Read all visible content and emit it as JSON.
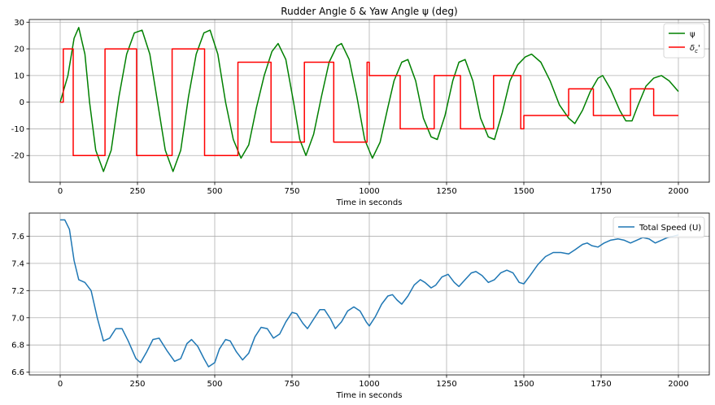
{
  "chart_data": [
    {
      "type": "line",
      "title": "Rudder Angle δ & Yaw Angle ψ (deg)",
      "xlabel": "Time in seconds",
      "ylabel": "",
      "xlim": [
        -100,
        2100
      ],
      "ylim": [
        -30,
        31
      ],
      "xticks": [
        0,
        250,
        500,
        750,
        1000,
        1250,
        1500,
        1750,
        2000
      ],
      "yticks": [
        -20,
        -10,
        0,
        10,
        20,
        30
      ],
      "grid": true,
      "legend_position": "top-right",
      "series": [
        {
          "name": "ψ",
          "color": "#008000",
          "points": [
            [
              0,
              0
            ],
            [
              25,
              10
            ],
            [
              45,
              24
            ],
            [
              60,
              28
            ],
            [
              80,
              18
            ],
            [
              95,
              0
            ],
            [
              115,
              -18
            ],
            [
              140,
              -26
            ],
            [
              165,
              -18
            ],
            [
              190,
              2
            ],
            [
              215,
              18
            ],
            [
              240,
              26
            ],
            [
              265,
              27
            ],
            [
              290,
              18
            ],
            [
              315,
              0
            ],
            [
              340,
              -18
            ],
            [
              365,
              -26
            ],
            [
              390,
              -18
            ],
            [
              415,
              2
            ],
            [
              440,
              18
            ],
            [
              465,
              26
            ],
            [
              485,
              27
            ],
            [
              510,
              18
            ],
            [
              535,
              0
            ],
            [
              560,
              -14
            ],
            [
              585,
              -21
            ],
            [
              610,
              -16
            ],
            [
              635,
              -2
            ],
            [
              660,
              10
            ],
            [
              685,
              19
            ],
            [
              705,
              22
            ],
            [
              730,
              16
            ],
            [
              755,
              0
            ],
            [
              775,
              -14
            ],
            [
              795,
              -20
            ],
            [
              820,
              -12
            ],
            [
              845,
              2
            ],
            [
              870,
              15
            ],
            [
              895,
              21
            ],
            [
              910,
              22
            ],
            [
              935,
              16
            ],
            [
              960,
              2
            ],
            [
              985,
              -14
            ],
            [
              1010,
              -21
            ],
            [
              1035,
              -15
            ],
            [
              1060,
              -2
            ],
            [
              1080,
              8
            ],
            [
              1105,
              15
            ],
            [
              1125,
              16
            ],
            [
              1150,
              8
            ],
            [
              1175,
              -6
            ],
            [
              1200,
              -13
            ],
            [
              1220,
              -14
            ],
            [
              1245,
              -5
            ],
            [
              1270,
              8
            ],
            [
              1290,
              15
            ],
            [
              1310,
              16
            ],
            [
              1335,
              8
            ],
            [
              1360,
              -6
            ],
            [
              1385,
              -13
            ],
            [
              1405,
              -14
            ],
            [
              1430,
              -4
            ],
            [
              1455,
              8
            ],
            [
              1480,
              14
            ],
            [
              1505,
              17
            ],
            [
              1525,
              18
            ],
            [
              1555,
              15
            ],
            [
              1585,
              8
            ],
            [
              1615,
              -1
            ],
            [
              1645,
              -6
            ],
            [
              1665,
              -8
            ],
            [
              1690,
              -3
            ],
            [
              1715,
              4
            ],
            [
              1740,
              9
            ],
            [
              1755,
              10
            ],
            [
              1780,
              5
            ],
            [
              1810,
              -3
            ],
            [
              1830,
              -7
            ],
            [
              1850,
              -7
            ],
            [
              1870,
              -1
            ],
            [
              1895,
              6
            ],
            [
              1920,
              9
            ],
            [
              1945,
              10
            ],
            [
              1970,
              8
            ],
            [
              2000,
              4
            ]
          ]
        },
        {
          "name": "δc'",
          "color": "#ff0000",
          "points": [
            [
              0,
              0
            ],
            [
              10,
              0
            ],
            [
              10,
              20
            ],
            [
              42,
              20
            ],
            [
              42,
              -20
            ],
            [
              145,
              -20
            ],
            [
              145,
              20
            ],
            [
              247,
              20
            ],
            [
              247,
              -20
            ],
            [
              362,
              -20
            ],
            [
              362,
              20
            ],
            [
              467,
              20
            ],
            [
              467,
              -20
            ],
            [
              575,
              -20
            ],
            [
              575,
              15
            ],
            [
              682,
              15
            ],
            [
              682,
              -15
            ],
            [
              790,
              -15
            ],
            [
              790,
              15
            ],
            [
              885,
              15
            ],
            [
              885,
              -15
            ],
            [
              993,
              -15
            ],
            [
              993,
              15
            ],
            [
              1000,
              15
            ],
            [
              1000,
              10
            ],
            [
              1100,
              10
            ],
            [
              1100,
              -10
            ],
            [
              1210,
              -10
            ],
            [
              1210,
              10
            ],
            [
              1295,
              10
            ],
            [
              1295,
              -10
            ],
            [
              1402,
              -10
            ],
            [
              1402,
              10
            ],
            [
              1490,
              10
            ],
            [
              1490,
              -10
            ],
            [
              1500,
              -10
            ],
            [
              1500,
              -5
            ],
            [
              1645,
              -5
            ],
            [
              1645,
              5
            ],
            [
              1725,
              5
            ],
            [
              1725,
              -5
            ],
            [
              1845,
              -5
            ],
            [
              1845,
              5
            ],
            [
              1920,
              5
            ],
            [
              1920,
              -5
            ],
            [
              2000,
              -5
            ]
          ]
        }
      ]
    },
    {
      "type": "line",
      "title": "",
      "xlabel": "Time in seconds",
      "ylabel": "",
      "xlim": [
        -100,
        2100
      ],
      "ylim": [
        6.58,
        7.77
      ],
      "xticks": [
        0,
        250,
        500,
        750,
        1000,
        1250,
        1500,
        1750,
        2000
      ],
      "yticks": [
        6.6,
        6.8,
        7.0,
        7.2,
        7.4,
        7.6
      ],
      "grid": true,
      "legend_position": "top-right",
      "series": [
        {
          "name": "Total Speed (U)",
          "color": "#1f77b4",
          "points": [
            [
              0,
              7.72
            ],
            [
              15,
              7.72
            ],
            [
              30,
              7.65
            ],
            [
              45,
              7.42
            ],
            [
              60,
              7.28
            ],
            [
              80,
              7.26
            ],
            [
              100,
              7.2
            ],
            [
              120,
              7.0
            ],
            [
              140,
              6.83
            ],
            [
              160,
              6.85
            ],
            [
              180,
              6.92
            ],
            [
              200,
              6.92
            ],
            [
              220,
              6.83
            ],
            [
              245,
              6.7
            ],
            [
              260,
              6.67
            ],
            [
              280,
              6.75
            ],
            [
              300,
              6.84
            ],
            [
              320,
              6.85
            ],
            [
              345,
              6.76
            ],
            [
              370,
              6.68
            ],
            [
              390,
              6.7
            ],
            [
              410,
              6.81
            ],
            [
              425,
              6.84
            ],
            [
              445,
              6.79
            ],
            [
              465,
              6.7
            ],
            [
              480,
              6.64
            ],
            [
              500,
              6.67
            ],
            [
              515,
              6.77
            ],
            [
              535,
              6.84
            ],
            [
              550,
              6.83
            ],
            [
              570,
              6.75
            ],
            [
              590,
              6.69
            ],
            [
              610,
              6.74
            ],
            [
              630,
              6.86
            ],
            [
              650,
              6.93
            ],
            [
              670,
              6.92
            ],
            [
              690,
              6.85
            ],
            [
              710,
              6.88
            ],
            [
              730,
              6.97
            ],
            [
              750,
              7.04
            ],
            [
              765,
              7.03
            ],
            [
              785,
              6.96
            ],
            [
              800,
              6.92
            ],
            [
              820,
              6.99
            ],
            [
              840,
              7.06
            ],
            [
              855,
              7.06
            ],
            [
              875,
              6.99
            ],
            [
              890,
              6.92
            ],
            [
              910,
              6.97
            ],
            [
              930,
              7.05
            ],
            [
              950,
              7.08
            ],
            [
              970,
              7.05
            ],
            [
              990,
              6.97
            ],
            [
              1000,
              6.94
            ],
            [
              1020,
              7.01
            ],
            [
              1040,
              7.1
            ],
            [
              1060,
              7.16
            ],
            [
              1075,
              7.17
            ],
            [
              1090,
              7.13
            ],
            [
              1105,
              7.1
            ],
            [
              1125,
              7.16
            ],
            [
              1145,
              7.24
            ],
            [
              1165,
              7.28
            ],
            [
              1180,
              7.26
            ],
            [
              1200,
              7.22
            ],
            [
              1215,
              7.24
            ],
            [
              1235,
              7.3
            ],
            [
              1255,
              7.32
            ],
            [
              1275,
              7.26
            ],
            [
              1290,
              7.23
            ],
            [
              1310,
              7.28
            ],
            [
              1330,
              7.33
            ],
            [
              1345,
              7.34
            ],
            [
              1365,
              7.31
            ],
            [
              1385,
              7.26
            ],
            [
              1405,
              7.28
            ],
            [
              1425,
              7.33
            ],
            [
              1445,
              7.35
            ],
            [
              1465,
              7.33
            ],
            [
              1485,
              7.26
            ],
            [
              1500,
              7.25
            ],
            [
              1520,
              7.31
            ],
            [
              1545,
              7.39
            ],
            [
              1570,
              7.45
            ],
            [
              1595,
              7.48
            ],
            [
              1620,
              7.48
            ],
            [
              1645,
              7.47
            ],
            [
              1665,
              7.5
            ],
            [
              1690,
              7.54
            ],
            [
              1705,
              7.55
            ],
            [
              1720,
              7.53
            ],
            [
              1740,
              7.52
            ],
            [
              1760,
              7.55
            ],
            [
              1780,
              7.57
            ],
            [
              1805,
              7.58
            ],
            [
              1825,
              7.57
            ],
            [
              1845,
              7.55
            ],
            [
              1865,
              7.57
            ],
            [
              1885,
              7.59
            ],
            [
              1905,
              7.58
            ],
            [
              1925,
              7.55
            ],
            [
              1945,
              7.57
            ],
            [
              1965,
              7.59
            ],
            [
              1985,
              7.6
            ],
            [
              2000,
              7.61
            ]
          ]
        }
      ]
    }
  ]
}
